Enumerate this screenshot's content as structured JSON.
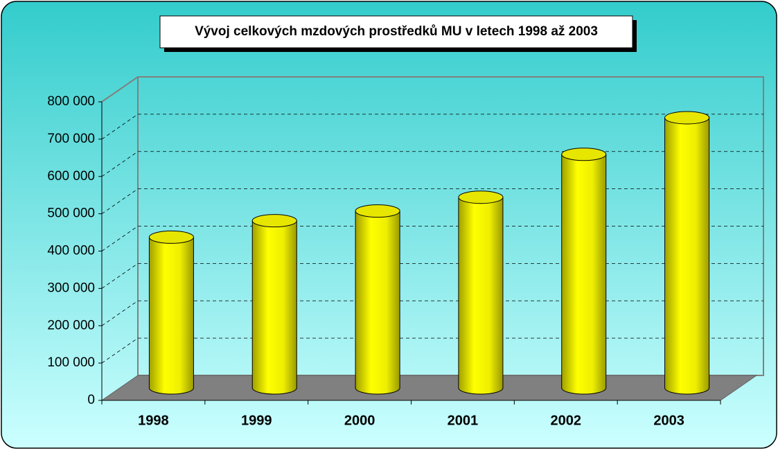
{
  "chart_data": {
    "type": "bar3d",
    "title": "Vývoj celkových mzdových prostředků MU v letech 1998 až 2003",
    "categories": [
      "1998",
      "1999",
      "2000",
      "2001",
      "2002",
      "2003"
    ],
    "values": [
      404000,
      448000,
      474000,
      511000,
      626000,
      724000
    ],
    "color": "#ffff00",
    "ylim": [
      0,
      800000
    ],
    "yticks": [
      0,
      {
        "value": 100000,
        "label": "100 000"
      },
      {
        "value": 200000,
        "label": "200 000"
      },
      {
        "value": 300000,
        "label": "300 000"
      },
      {
        "value": 400000,
        "label": "400 000"
      },
      {
        "value": 500000,
        "label": "500 000"
      },
      {
        "value": 600000,
        "label": "600 000"
      },
      {
        "value": 700000,
        "label": "700 000"
      },
      {
        "value": 800000,
        "label": "800 000"
      }
    ],
    "grid": true
  }
}
